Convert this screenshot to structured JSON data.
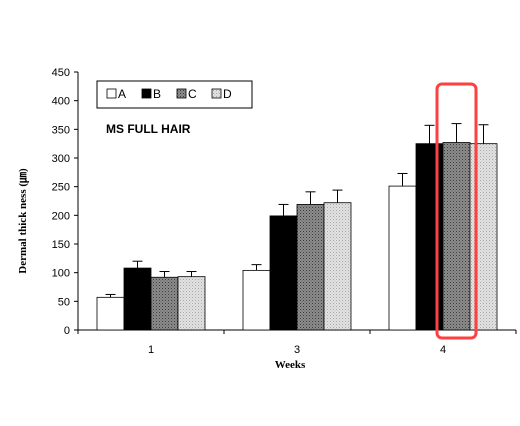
{
  "chart_data": {
    "type": "bar",
    "categories": [
      "1",
      "3",
      "4"
    ],
    "series": [
      {
        "name": "A",
        "values": [
          57,
          104,
          251
        ],
        "errors": [
          5,
          10,
          22
        ],
        "color": "#ffffff",
        "pattern": "solid"
      },
      {
        "name": "B",
        "values": [
          108,
          199,
          325
        ],
        "errors": [
          12,
          20,
          32
        ],
        "color": "#000000",
        "pattern": "solid"
      },
      {
        "name": "C",
        "values": [
          92,
          219,
          327
        ],
        "errors": [
          10,
          22,
          33
        ],
        "color": "#7a7a7a",
        "pattern": "dots"
      },
      {
        "name": "D",
        "values": [
          93,
          222,
          325
        ],
        "errors": [
          9,
          22,
          33
        ],
        "color": "#d2d2d2",
        "pattern": "dots"
      }
    ],
    "xlabel": "Weeks",
    "ylabel": "Dermal thick ness (㎛)",
    "ylim": [
      0,
      450
    ],
    "yticks": [
      0,
      50,
      100,
      150,
      200,
      250,
      300,
      350,
      400,
      450
    ],
    "legend_position": "top-left",
    "annotation": "MS FULL HAIR",
    "highlight": {
      "category": "4",
      "series": "C",
      "color": "#ff4040"
    }
  }
}
